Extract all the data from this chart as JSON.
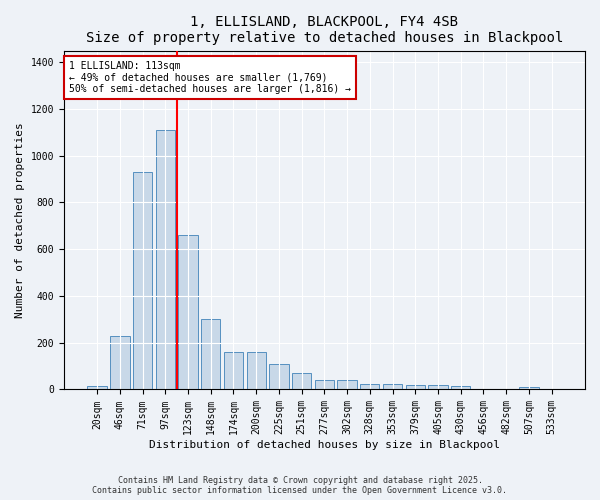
{
  "title1": "1, ELLISLAND, BLACKPOOL, FY4 4SB",
  "title2": "Size of property relative to detached houses in Blackpool",
  "xlabel": "Distribution of detached houses by size in Blackpool",
  "ylabel": "Number of detached properties",
  "categories": [
    "20sqm",
    "46sqm",
    "71sqm",
    "97sqm",
    "123sqm",
    "148sqm",
    "174sqm",
    "200sqm",
    "225sqm",
    "251sqm",
    "277sqm",
    "302sqm",
    "328sqm",
    "353sqm",
    "379sqm",
    "405sqm",
    "430sqm",
    "456sqm",
    "482sqm",
    "507sqm",
    "533sqm"
  ],
  "values": [
    15,
    230,
    930,
    1110,
    660,
    300,
    160,
    160,
    110,
    70,
    40,
    40,
    25,
    25,
    20,
    20,
    15,
    0,
    0,
    10,
    0
  ],
  "bar_color": "#c8d8e8",
  "bar_edge_color": "#5590c0",
  "red_line_x": 3.5,
  "annotation_text": "1 ELLISLAND: 113sqm\n← 49% of detached houses are smaller (1,769)\n50% of semi-detached houses are larger (1,816) →",
  "annotation_box_color": "#ffffff",
  "annotation_box_edge_color": "#cc0000",
  "ylim": [
    0,
    1450
  ],
  "yticks": [
    0,
    200,
    400,
    600,
    800,
    1000,
    1200,
    1400
  ],
  "background_color": "#eef2f7",
  "grid_color": "#ffffff",
  "footer": "Contains HM Land Registry data © Crown copyright and database right 2025.\nContains public sector information licensed under the Open Government Licence v3.0.",
  "title_fontsize": 10,
  "axis_label_fontsize": 8,
  "tick_fontsize": 7,
  "footer_fontsize": 6,
  "annot_fontsize": 7
}
